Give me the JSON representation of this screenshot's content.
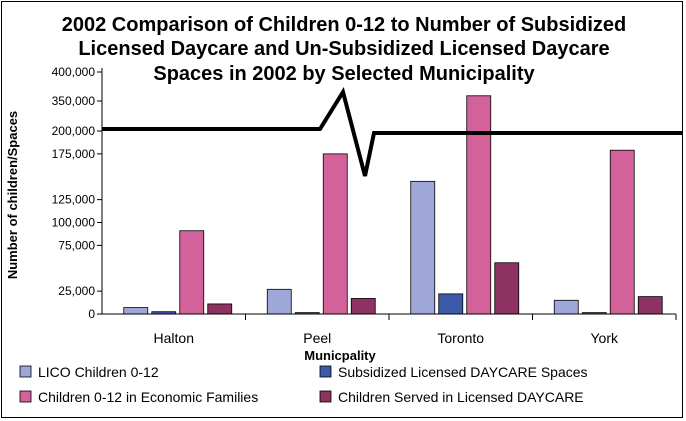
{
  "chart_data": {
    "type": "bar",
    "title_lines": [
      "2002 Comparison of Children 0-12 to Number of Subsidized",
      "Licensed Daycare and Un-Subsidized Licensed Daycare",
      "Spaces in 2002 by Selected Municipality"
    ],
    "xlabel": "Municpality",
    "ylabel": "Number of children/Spaces",
    "categories": [
      "Halton",
      "Peel",
      "Toronto",
      "York"
    ],
    "axis_break": {
      "lower_range": [
        0,
        200000
      ],
      "upper_range": [
        350000,
        400000
      ]
    },
    "yticks_lower": [
      "0",
      "25,000",
      "75,000",
      "100,000",
      "125,000",
      "175,000",
      "200,000"
    ],
    "ytick_values_lower": [
      0,
      25000,
      75000,
      100000,
      125000,
      175000,
      200000
    ],
    "yticks_upper": [
      "350,000",
      "400,000"
    ],
    "ytick_values_upper": [
      350000,
      400000
    ],
    "series": [
      {
        "name": "LICO Children 0-12",
        "color": "#9fa6d8",
        "values": [
          7000,
          27000,
          145000,
          15000
        ]
      },
      {
        "name": "Subsidized Licensed DAYCARE Spaces",
        "color": "#3b5ba8",
        "values": [
          2500,
          1500,
          22000,
          1500
        ]
      },
      {
        "name": "Children 0-12 in Economic Families",
        "color": "#d3619a",
        "values": [
          91000,
          175000,
          359000,
          179000
        ]
      },
      {
        "name": "Children Served in Licensed DAYCARE",
        "color": "#8e3262",
        "values": [
          11000,
          17000,
          56000,
          19000
        ]
      }
    ],
    "grid": false,
    "legend_position": "bottom"
  }
}
